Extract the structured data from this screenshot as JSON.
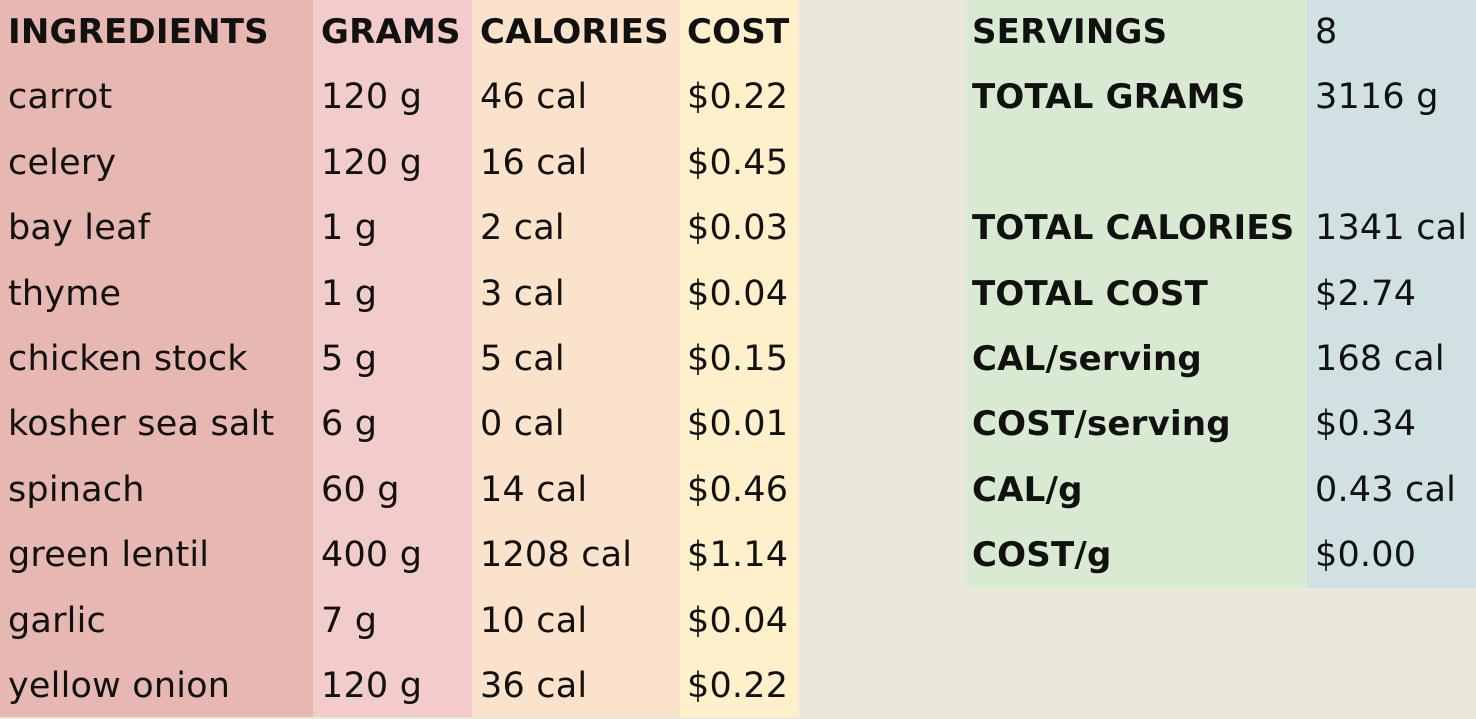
{
  "headers": {
    "ingredients": "INGREDIENTS",
    "grams": "GRAMS",
    "calories": "CALORIES",
    "cost": "COST"
  },
  "rows": [
    {
      "ingredient": "carrot",
      "grams": "120 g",
      "calories": "46 cal",
      "cost": "$0.22"
    },
    {
      "ingredient": "celery",
      "grams": "120 g",
      "calories": "16 cal",
      "cost": "$0.45"
    },
    {
      "ingredient": "bay leaf",
      "grams": "1 g",
      "calories": "2 cal",
      "cost": "$0.03"
    },
    {
      "ingredient": "thyme",
      "grams": "1 g",
      "calories": "3 cal",
      "cost": "$0.04"
    },
    {
      "ingredient": "chicken stock",
      "grams": "5 g",
      "calories": "5 cal",
      "cost": "$0.15"
    },
    {
      "ingredient": "kosher sea salt",
      "grams": "6 g",
      "calories": "0 cal",
      "cost": "$0.01"
    },
    {
      "ingredient": "spinach",
      "grams": "60 g",
      "calories": "14 cal",
      "cost": "$0.46"
    },
    {
      "ingredient": "green lentil",
      "grams": "400 g",
      "calories": "1208 cal",
      "cost": "$1.14"
    },
    {
      "ingredient": "garlic",
      "grams": "7 g",
      "calories": "10 cal",
      "cost": "$0.04"
    },
    {
      "ingredient": "yellow onion",
      "grams": "120 g",
      "calories": "36 cal",
      "cost": "$0.22"
    }
  ],
  "summary": {
    "servings_label": "SERVINGS",
    "servings_value": "8",
    "total_grams_label": "TOTAL GRAMS",
    "total_grams_value": "3116 g",
    "total_calories_label": "TOTAL CALORIES",
    "total_calories_value": "1341 cal",
    "total_cost_label": "TOTAL COST",
    "total_cost_value": "$2.74",
    "cal_per_serving_label": "CAL/serving",
    "cal_per_serving_value": "168 cal",
    "cost_per_serving_label": "COST/serving",
    "cost_per_serving_value": "$0.34",
    "cal_per_g_label": "CAL/g",
    "cal_per_g_value": "0.43 cal",
    "cost_per_g_label": "COST/g",
    "cost_per_g_value": "$0.00"
  },
  "colors": {
    "ingredients_col": "#e6b8b1",
    "grams_col": "#f2cbcb",
    "calories_col": "#fbe3cb",
    "cost_col": "#fff0cc",
    "summary_label_col": "#d9ead3",
    "summary_value_col": "#d0e0e3",
    "background": "#ebe7db"
  }
}
